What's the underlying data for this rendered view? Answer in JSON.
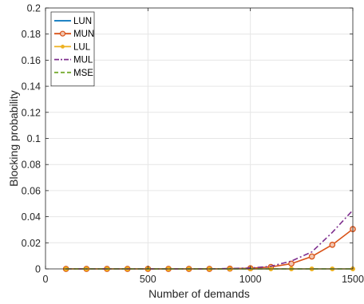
{
  "chart_data": {
    "type": "line",
    "xlabel": "Number of demands",
    "ylabel": "Blocking probability",
    "xlim": [
      0,
      1500
    ],
    "ylim": [
      0,
      0.2
    ],
    "xticks": [
      0,
      500,
      1000,
      1500
    ],
    "xtick_labels": [
      "0",
      "500",
      "1000",
      "1500"
    ],
    "yticks": [
      0,
      0.02,
      0.04,
      0.06,
      0.08,
      0.1,
      0.12,
      0.14,
      0.16,
      0.18,
      0.2
    ],
    "ytick_labels": [
      "0",
      "0.02",
      "0.04",
      "0.06",
      "0.08",
      "0.1",
      "0.12",
      "0.14",
      "0.16",
      "0.18",
      "0.2"
    ],
    "grid": true,
    "legend_position": "top-left",
    "x": [
      100,
      200,
      300,
      400,
      500,
      600,
      700,
      800,
      900,
      1000,
      1100,
      1200,
      1300,
      1400,
      1500
    ],
    "series": [
      {
        "name": "LUN",
        "color": "#0072BD",
        "style": "solid",
        "marker": "none",
        "values": [
          0,
          0,
          0,
          0,
          0,
          0,
          0,
          0,
          0,
          0,
          0,
          0,
          0,
          0,
          0
        ]
      },
      {
        "name": "MUN",
        "color": "#D95319",
        "style": "solid",
        "marker": "circle",
        "values": [
          0,
          0,
          0,
          0,
          0,
          0,
          0,
          0,
          0.0002,
          0.0005,
          0.0015,
          0.004,
          0.0095,
          0.0185,
          0.0305
        ]
      },
      {
        "name": "LUL",
        "color": "#EDB120",
        "style": "solid",
        "marker": "dot",
        "values": [
          0,
          0,
          0,
          0,
          0,
          0,
          0,
          0,
          0,
          0,
          0,
          0,
          0,
          0,
          0
        ]
      },
      {
        "name": "MUL",
        "color": "#7E2F8E",
        "style": "dashdot",
        "marker": "none",
        "values": [
          0,
          0,
          0,
          0,
          0,
          0,
          0,
          0,
          0.0003,
          0.0007,
          0.002,
          0.006,
          0.013,
          0.028,
          0.045
        ]
      },
      {
        "name": "MSE",
        "color": "#77AC30",
        "style": "dashed",
        "marker": "none",
        "values": [
          0,
          0,
          0,
          0,
          0,
          0,
          0,
          0,
          0,
          0,
          0,
          0,
          0,
          0,
          0
        ]
      }
    ]
  }
}
